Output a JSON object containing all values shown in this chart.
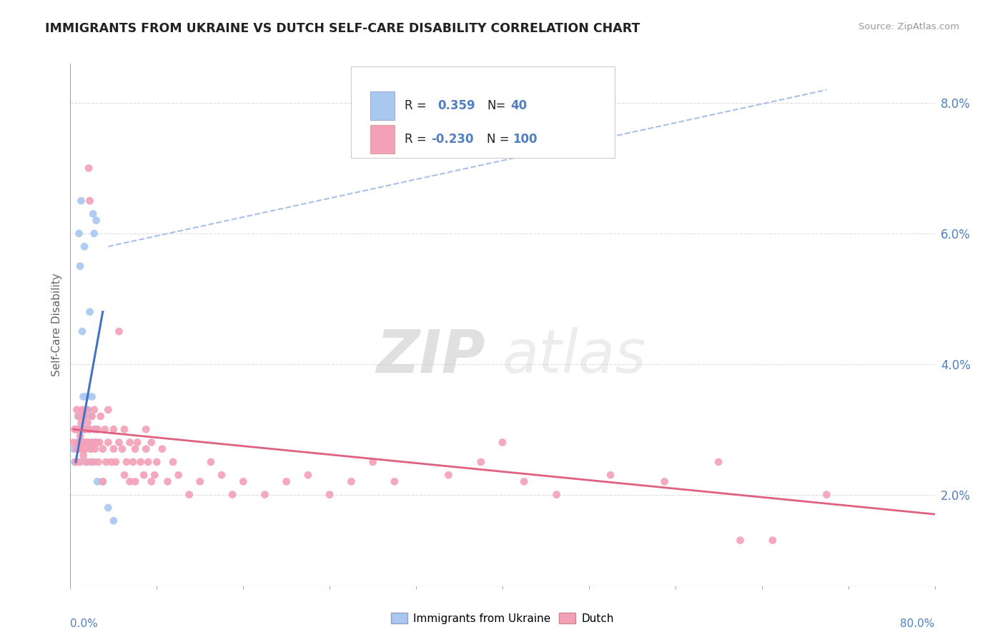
{
  "title": "IMMIGRANTS FROM UKRAINE VS DUTCH SELF-CARE DISABILITY CORRELATION CHART",
  "source": "Source: ZipAtlas.com",
  "ylabel": "Self-Care Disability",
  "xmin": 0.0,
  "xmax": 0.8,
  "ymin": 0.006,
  "ymax": 0.086,
  "watermark_zip": "ZIP",
  "watermark_atlas": "atlas",
  "legend_blue_r": "0.359",
  "legend_blue_n": "40",
  "legend_pink_r": "-0.230",
  "legend_pink_n": "100",
  "blue_color": "#A8C8F0",
  "pink_color": "#F4A0B8",
  "blue_line_color": "#4472C4",
  "pink_line_color": "#E06080",
  "dashed_line_color": "#A8C0E8",
  "title_color": "#222222",
  "source_color": "#999999",
  "axis_color": "#AAAAAA",
  "grid_color": "#DDDDDD",
  "tick_label_color": "#5080C0",
  "blue_scatter": [
    [
      0.003,
      0.027
    ],
    [
      0.004,
      0.025
    ],
    [
      0.005,
      0.03
    ],
    [
      0.006,
      0.025
    ],
    [
      0.007,
      0.028
    ],
    [
      0.007,
      0.032
    ],
    [
      0.008,
      0.027
    ],
    [
      0.008,
      0.06
    ],
    [
      0.009,
      0.03
    ],
    [
      0.009,
      0.055
    ],
    [
      0.01,
      0.065
    ],
    [
      0.01,
      0.028
    ],
    [
      0.011,
      0.045
    ],
    [
      0.011,
      0.03
    ],
    [
      0.012,
      0.035
    ],
    [
      0.012,
      0.028
    ],
    [
      0.013,
      0.032
    ],
    [
      0.013,
      0.058
    ],
    [
      0.014,
      0.025
    ],
    [
      0.014,
      0.03
    ],
    [
      0.015,
      0.035
    ],
    [
      0.015,
      0.028
    ],
    [
      0.016,
      0.033
    ],
    [
      0.016,
      0.028
    ],
    [
      0.017,
      0.03
    ],
    [
      0.018,
      0.048
    ],
    [
      0.019,
      0.027
    ],
    [
      0.019,
      0.032
    ],
    [
      0.02,
      0.035
    ],
    [
      0.02,
      0.028
    ],
    [
      0.021,
      0.063
    ],
    [
      0.022,
      0.06
    ],
    [
      0.022,
      0.025
    ],
    [
      0.023,
      0.028
    ],
    [
      0.024,
      0.062
    ],
    [
      0.025,
      0.03
    ],
    [
      0.025,
      0.022
    ],
    [
      0.03,
      0.022
    ],
    [
      0.035,
      0.018
    ],
    [
      0.04,
      0.016
    ]
  ],
  "pink_scatter": [
    [
      0.003,
      0.028
    ],
    [
      0.004,
      0.03
    ],
    [
      0.005,
      0.025
    ],
    [
      0.006,
      0.027
    ],
    [
      0.006,
      0.033
    ],
    [
      0.007,
      0.03
    ],
    [
      0.007,
      0.028
    ],
    [
      0.008,
      0.032
    ],
    [
      0.008,
      0.027
    ],
    [
      0.009,
      0.029
    ],
    [
      0.009,
      0.025
    ],
    [
      0.01,
      0.031
    ],
    [
      0.01,
      0.028
    ],
    [
      0.011,
      0.033
    ],
    [
      0.011,
      0.027
    ],
    [
      0.012,
      0.03
    ],
    [
      0.012,
      0.026
    ],
    [
      0.013,
      0.032
    ],
    [
      0.013,
      0.028
    ],
    [
      0.014,
      0.03
    ],
    [
      0.014,
      0.027
    ],
    [
      0.015,
      0.033
    ],
    [
      0.015,
      0.028
    ],
    [
      0.016,
      0.025
    ],
    [
      0.016,
      0.031
    ],
    [
      0.017,
      0.028
    ],
    [
      0.017,
      0.07
    ],
    [
      0.018,
      0.065
    ],
    [
      0.018,
      0.03
    ],
    [
      0.019,
      0.027
    ],
    [
      0.02,
      0.032
    ],
    [
      0.02,
      0.025
    ],
    [
      0.021,
      0.028
    ],
    [
      0.022,
      0.033
    ],
    [
      0.022,
      0.03
    ],
    [
      0.023,
      0.027
    ],
    [
      0.024,
      0.028
    ],
    [
      0.025,
      0.03
    ],
    [
      0.026,
      0.025
    ],
    [
      0.027,
      0.028
    ],
    [
      0.028,
      0.032
    ],
    [
      0.03,
      0.027
    ],
    [
      0.03,
      0.022
    ],
    [
      0.032,
      0.03
    ],
    [
      0.033,
      0.025
    ],
    [
      0.035,
      0.028
    ],
    [
      0.035,
      0.033
    ],
    [
      0.038,
      0.025
    ],
    [
      0.04,
      0.027
    ],
    [
      0.04,
      0.03
    ],
    [
      0.042,
      0.025
    ],
    [
      0.045,
      0.028
    ],
    [
      0.045,
      0.045
    ],
    [
      0.048,
      0.027
    ],
    [
      0.05,
      0.023
    ],
    [
      0.05,
      0.03
    ],
    [
      0.052,
      0.025
    ],
    [
      0.055,
      0.022
    ],
    [
      0.055,
      0.028
    ],
    [
      0.058,
      0.025
    ],
    [
      0.06,
      0.027
    ],
    [
      0.06,
      0.022
    ],
    [
      0.062,
      0.028
    ],
    [
      0.065,
      0.025
    ],
    [
      0.068,
      0.023
    ],
    [
      0.07,
      0.027
    ],
    [
      0.07,
      0.03
    ],
    [
      0.072,
      0.025
    ],
    [
      0.075,
      0.022
    ],
    [
      0.075,
      0.028
    ],
    [
      0.078,
      0.023
    ],
    [
      0.08,
      0.025
    ],
    [
      0.085,
      0.027
    ],
    [
      0.09,
      0.022
    ],
    [
      0.095,
      0.025
    ],
    [
      0.1,
      0.023
    ],
    [
      0.11,
      0.02
    ],
    [
      0.12,
      0.022
    ],
    [
      0.13,
      0.025
    ],
    [
      0.14,
      0.023
    ],
    [
      0.15,
      0.02
    ],
    [
      0.16,
      0.022
    ],
    [
      0.18,
      0.02
    ],
    [
      0.2,
      0.022
    ],
    [
      0.22,
      0.023
    ],
    [
      0.24,
      0.02
    ],
    [
      0.26,
      0.022
    ],
    [
      0.28,
      0.025
    ],
    [
      0.3,
      0.022
    ],
    [
      0.35,
      0.023
    ],
    [
      0.38,
      0.025
    ],
    [
      0.4,
      0.028
    ],
    [
      0.42,
      0.022
    ],
    [
      0.45,
      0.02
    ],
    [
      0.5,
      0.023
    ],
    [
      0.55,
      0.022
    ],
    [
      0.6,
      0.025
    ],
    [
      0.62,
      0.013
    ],
    [
      0.65,
      0.013
    ],
    [
      0.7,
      0.02
    ]
  ],
  "blue_line_x": [
    0.005,
    0.03
  ],
  "blue_line_y": [
    0.025,
    0.048
  ],
  "pink_line_x": [
    0.003,
    0.8
  ],
  "pink_line_y": [
    0.03,
    0.017
  ],
  "dashed_line_x": [
    0.035,
    0.7
  ],
  "dashed_line_y": [
    0.058,
    0.082
  ],
  "ytick_vals": [
    0.02,
    0.04,
    0.06,
    0.08
  ],
  "ytick_labels": [
    "2.0%",
    "4.0%",
    "6.0%",
    "8.0%"
  ]
}
